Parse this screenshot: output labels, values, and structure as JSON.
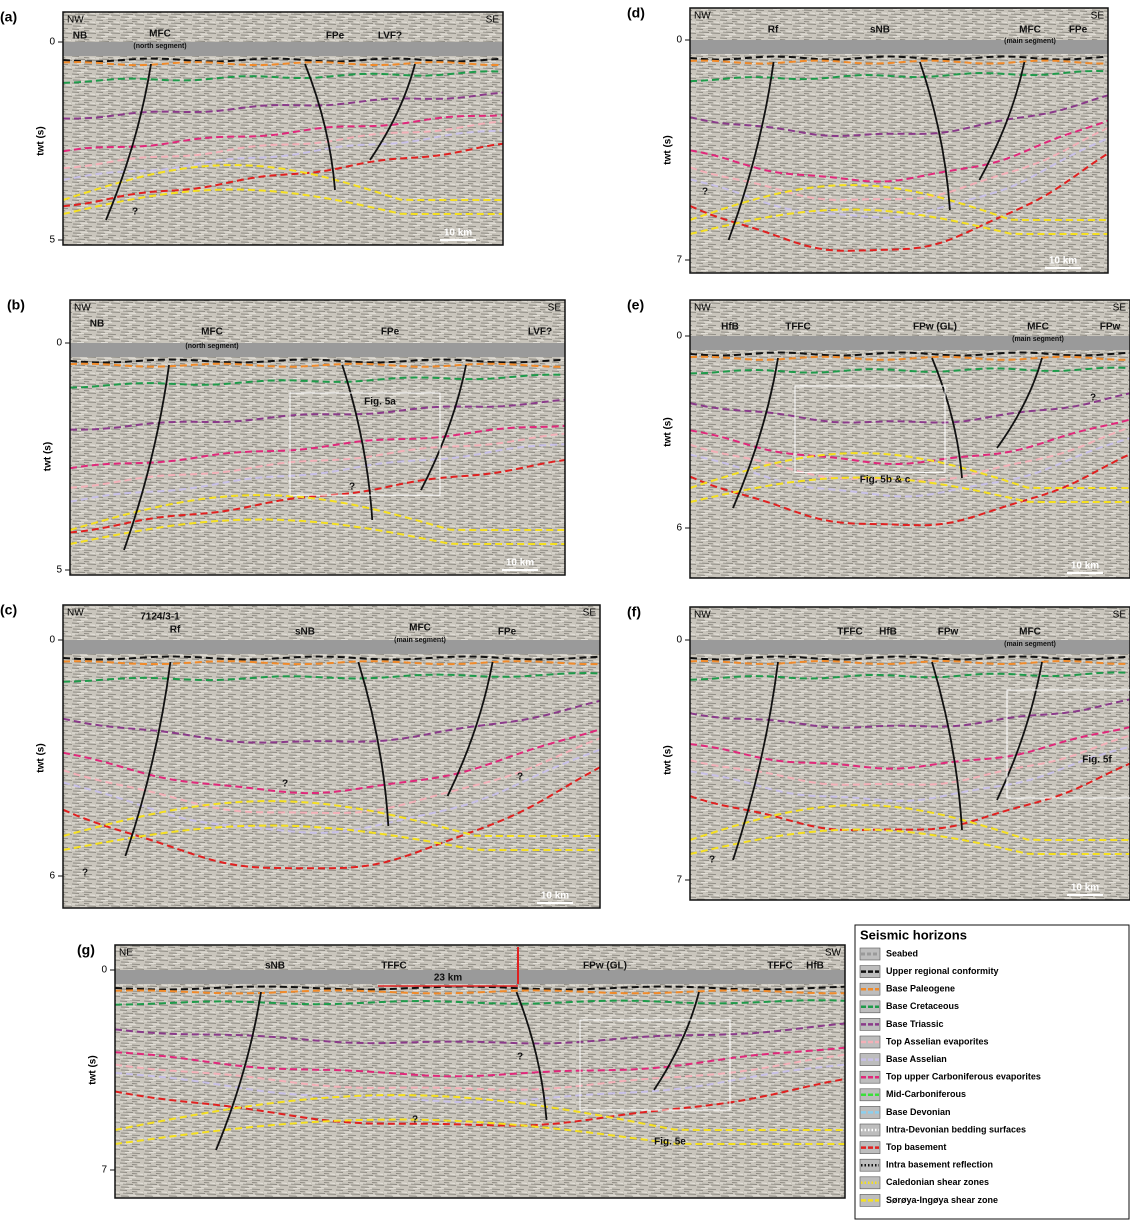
{
  "panels": [
    {
      "letter": "(a)",
      "left": "NW",
      "right": "SE",
      "ylabel": "twt (s)",
      "ticks": [
        "0",
        "5"
      ],
      "scale": "10 km",
      "labels": [
        "NB",
        "MFC",
        "(north segment)",
        "FPe",
        "LVF?",
        "?"
      ]
    },
    {
      "letter": "(b)",
      "left": "NW",
      "right": "SE",
      "ylabel": "twt (s)",
      "ticks": [
        "0",
        "5"
      ],
      "scale": "10 km",
      "labels": [
        "NB",
        "MFC",
        "(north segment)",
        "FPe",
        "LVF?",
        "Fig. 5a",
        "?"
      ]
    },
    {
      "letter": "(c)",
      "left": "NW",
      "right": "SE",
      "ylabel": "twt (s)",
      "ticks": [
        "0",
        "6"
      ],
      "scale": "10 km",
      "labels": [
        "7124/3-1",
        "Rf",
        "sNB",
        "MFC",
        "(main segment)",
        "FPe",
        "?",
        "?",
        "?"
      ]
    },
    {
      "letter": "(d)",
      "left": "NW",
      "right": "SE",
      "ylabel": "twt (s)",
      "ticks": [
        "0",
        "7"
      ],
      "scale": "10 km",
      "labels": [
        "Rf",
        "sNB",
        "MFC",
        "(main segment)",
        "FPe",
        "?"
      ]
    },
    {
      "letter": "(e)",
      "left": "NW",
      "right": "SE",
      "ylabel": "twt (s)",
      "ticks": [
        "0",
        "6"
      ],
      "scale": "10 km",
      "labels": [
        "HfB",
        "TFFC",
        "FPw (GL)",
        "MFC",
        "(main segment)",
        "FPw",
        "Fig. 5b & c",
        "?"
      ]
    },
    {
      "letter": "(f)",
      "left": "NW",
      "right": "SE",
      "ylabel": "twt (s)",
      "ticks": [
        "0",
        "7"
      ],
      "scale": "10 km",
      "labels": [
        "HfB",
        "TFFC",
        "FPw",
        "MFC",
        "(main segment)",
        "Fig. 5f",
        "?"
      ]
    },
    {
      "letter": "(g)",
      "left": "NE",
      "right": "SW",
      "ylabel": "twt (s)",
      "ticks": [
        "0",
        "7"
      ],
      "labels": [
        "sNB",
        "TFFC",
        "23 km",
        "FPw (GL)",
        "TFFC",
        "HfB",
        "Fig. 5e",
        "?",
        "?"
      ]
    }
  ],
  "legend": {
    "title": "Seismic horizons",
    "items": [
      {
        "name": "Seabed",
        "color": "#9a9a9a",
        "style": "band"
      },
      {
        "name": "Upper regional conformity",
        "color": "#111111",
        "style": "dashed"
      },
      {
        "name": "Base Paleogene",
        "color": "#f08a2a",
        "style": "dashed"
      },
      {
        "name": "Base Cretaceous",
        "color": "#1e9a4a",
        "style": "dashed"
      },
      {
        "name": "Base Triassic",
        "color": "#8a3a8a",
        "style": "dashed"
      },
      {
        "name": "Top Asselian evaporites",
        "color": "#f4b0b8",
        "style": "dashed"
      },
      {
        "name": "Base Asselian",
        "color": "#c8c0e8",
        "style": "dashed"
      },
      {
        "name": "Top upper Carboniferous evaporites",
        "color": "#e0287a",
        "style": "dashed"
      },
      {
        "name": "Mid-Carboniferous",
        "color": "#3ae03a",
        "style": "dashed"
      },
      {
        "name": "Base Devonian",
        "color": "#8ccfee",
        "style": "dashed"
      },
      {
        "name": "Intra-Devonian bedding surfaces",
        "color": "#ffffff",
        "style": "dotted"
      },
      {
        "name": "Top basement",
        "color": "#e02020",
        "style": "dashed"
      },
      {
        "name": "Intra basement reflection",
        "color": "#111111",
        "style": "dotted"
      },
      {
        "name": "Caledonian shear zones",
        "color": "#f5e020",
        "style": "dotted"
      },
      {
        "name": "Sørøya-Ingøya shear zone",
        "color": "#f5e020",
        "style": "dashed"
      }
    ]
  }
}
